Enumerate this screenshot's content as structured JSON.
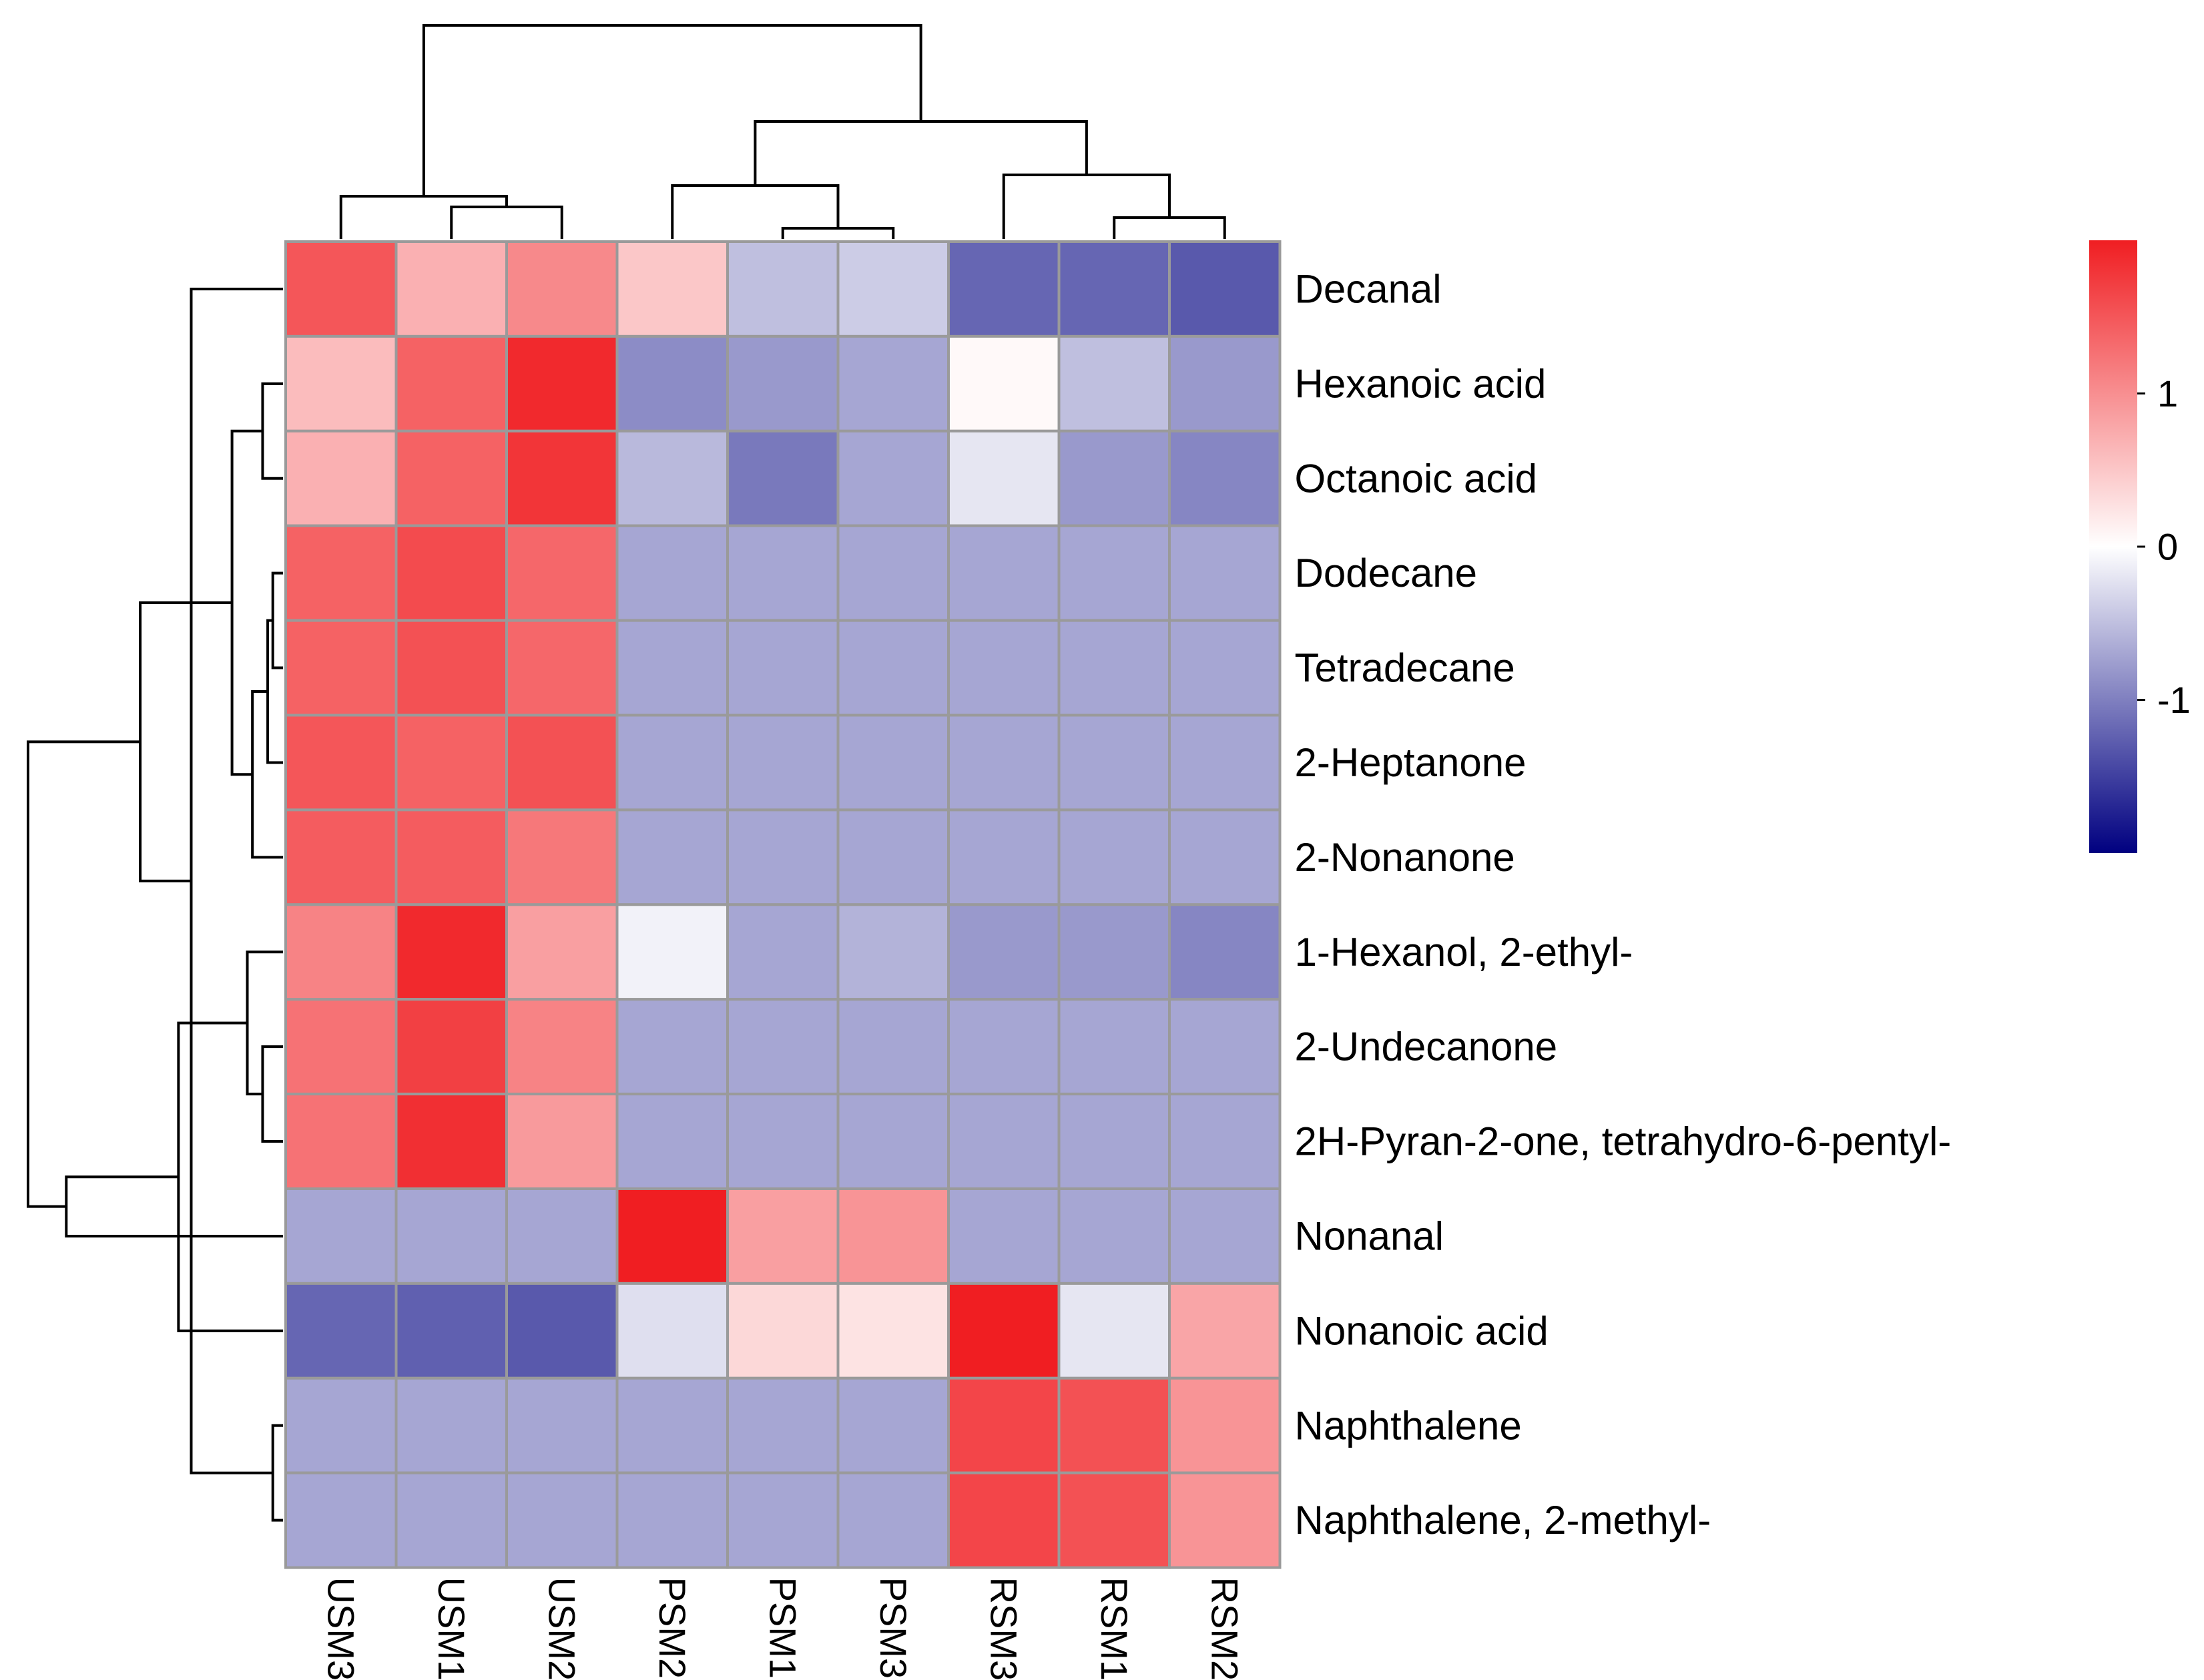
{
  "chart_data": {
    "type": "heatmap",
    "title": "",
    "rows": [
      "Decanal",
      "Hexanoic acid",
      "Octanoic acid",
      "Dodecane",
      "Tetradecane",
      "2-Heptanone",
      "2-Nonanone",
      "1-Hexanol, 2-ethyl-",
      "2-Undecanone",
      "2H-Pyran-2-one, tetrahydro-6-pentyl-",
      "Nonanal",
      "Nonanoic acid",
      "Naphthalene",
      "Naphthalene, 2-methyl-"
    ],
    "columns": [
      "USM3",
      "USM1",
      "USM2",
      "PSM2",
      "PSM1",
      "PSM3",
      "RSM3",
      "RSM1",
      "RSM2"
    ],
    "values": [
      [
        1.5,
        0.7,
        1.05,
        0.5,
        -0.5,
        -0.4,
        -1.2,
        -1.2,
        -1.3
      ],
      [
        0.6,
        1.4,
        1.9,
        -0.9,
        -0.8,
        -0.7,
        0.05,
        -0.5,
        -0.8
      ],
      [
        0.7,
        1.4,
        1.8,
        -0.55,
        -1.05,
        -0.7,
        -0.2,
        -0.8,
        -0.95
      ],
      [
        1.4,
        1.6,
        1.35,
        -0.7,
        -0.7,
        -0.7,
        -0.7,
        -0.7,
        -0.7
      ],
      [
        1.4,
        1.55,
        1.35,
        -0.7,
        -0.7,
        -0.7,
        -0.7,
        -0.7,
        -0.7
      ],
      [
        1.5,
        1.4,
        1.55,
        -0.7,
        -0.7,
        -0.7,
        -0.7,
        -0.7,
        -0.7
      ],
      [
        1.45,
        1.45,
        1.2,
        -0.7,
        -0.7,
        -0.7,
        -0.7,
        -0.7,
        -0.7
      ],
      [
        1.1,
        1.9,
        0.85,
        -0.1,
        -0.7,
        -0.6,
        -0.8,
        -0.8,
        -0.95
      ],
      [
        1.25,
        1.7,
        1.1,
        -0.7,
        -0.7,
        -0.7,
        -0.7,
        -0.7,
        -0.7
      ],
      [
        1.25,
        1.85,
        0.9,
        -0.7,
        -0.7,
        -0.7,
        -0.7,
        -0.7,
        -0.7
      ],
      [
        -0.7,
        -0.7,
        -0.7,
        2.0,
        0.85,
        0.95,
        -0.7,
        -0.7,
        -0.7
      ],
      [
        -1.2,
        -1.25,
        -1.3,
        -0.25,
        0.35,
        0.25,
        2.0,
        -0.2,
        0.8
      ],
      [
        -0.7,
        -0.7,
        -0.7,
        -0.7,
        -0.7,
        -0.7,
        1.65,
        1.55,
        0.95
      ],
      [
        -0.7,
        -0.7,
        -0.7,
        -0.7,
        -0.7,
        -0.7,
        1.65,
        1.55,
        0.95
      ]
    ],
    "color_scale": {
      "min": -2,
      "max": 2,
      "low_color": "#000080",
      "mid_color": "#ffffff",
      "high_color": "#f01e22",
      "ticks": [
        1,
        0,
        -1
      ],
      "tick_labels": [
        "1",
        "0",
        "-1"
      ]
    },
    "row_dendrogram": [
      [
        3,
        4,
        0.04
      ],
      [
        12,
        13,
        0.04
      ],
      [
        5,
        14,
        0.06
      ],
      [
        1,
        2,
        0.08
      ],
      [
        8,
        9,
        0.08
      ],
      [
        6,
        16,
        0.12
      ],
      [
        7,
        18,
        0.14
      ],
      [
        17,
        19,
        0.2
      ],
      [
        0,
        15,
        0.36
      ],
      [
        11,
        20,
        0.41
      ],
      [
        21,
        22,
        0.56
      ],
      [
        10,
        23,
        0.85
      ],
      [
        24,
        25,
        1.0
      ]
    ],
    "column_dendrogram": [
      [
        4,
        5,
        0.05
      ],
      [
        7,
        8,
        0.1
      ],
      [
        1,
        2,
        0.15
      ],
      [
        0,
        11,
        0.2
      ],
      [
        3,
        9,
        0.25
      ],
      [
        6,
        10,
        0.3
      ],
      [
        14,
        13,
        0.55
      ],
      [
        12,
        15,
        1.0
      ]
    ]
  }
}
